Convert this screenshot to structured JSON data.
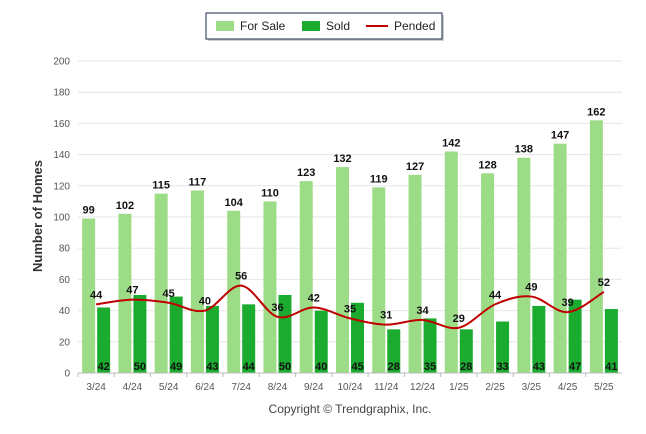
{
  "chart_data": {
    "type": "bar",
    "categories": [
      "3/24",
      "4/24",
      "5/24",
      "6/24",
      "7/24",
      "8/24",
      "9/24",
      "10/24",
      "11/24",
      "12/24",
      "1/25",
      "2/25",
      "3/25",
      "4/25",
      "5/25"
    ],
    "series": [
      {
        "name": "For Sale",
        "type": "bar",
        "color": "#9ddc86",
        "values": [
          99,
          102,
          115,
          117,
          104,
          110,
          123,
          132,
          119,
          127,
          142,
          128,
          138,
          147,
          162
        ]
      },
      {
        "name": "Sold",
        "type": "bar",
        "color": "#1aab2f",
        "values": [
          42,
          50,
          49,
          43,
          44,
          50,
          40,
          45,
          28,
          35,
          28,
          33,
          43,
          47,
          41
        ]
      },
      {
        "name": "Pended",
        "type": "line",
        "color": "#c00000",
        "values": [
          44,
          47,
          45,
          40,
          56,
          36,
          42,
          35,
          31,
          34,
          29,
          44,
          49,
          39,
          52
        ]
      }
    ],
    "ylabel": "Number of Homes",
    "xlabel": "",
    "ylim": [
      0,
      200
    ],
    "yticks": [
      0,
      20,
      40,
      60,
      80,
      100,
      120,
      140,
      160,
      180,
      200
    ],
    "legend_position": "top-center",
    "grid": true
  },
  "credit": "Copyright © Trendgraphix, Inc."
}
